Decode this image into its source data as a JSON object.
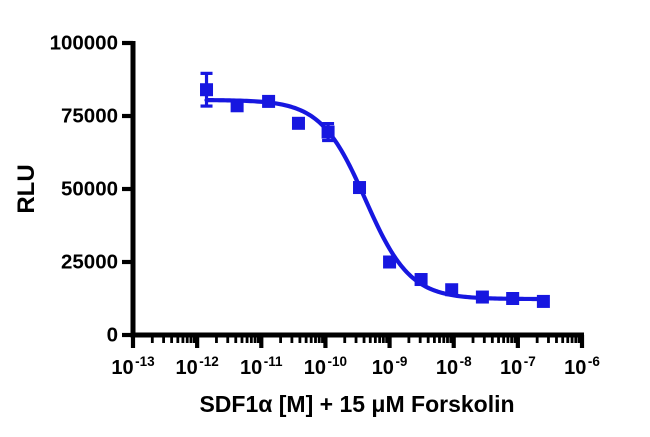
{
  "chart_data": {
    "type": "scatter",
    "title": "",
    "xlabel": "SDF1α [M] + 15 μM Forskolin",
    "ylabel": "RLU",
    "x_scale": "log10",
    "xlim_log10": [
      -13,
      -6
    ],
    "ylim": [
      0,
      100000
    ],
    "grid": false,
    "legend_position": "none",
    "y_ticks": [
      0,
      25000,
      50000,
      75000,
      100000
    ],
    "y_tick_labels": [
      "0",
      "25000",
      "50000",
      "75000",
      "100000"
    ],
    "x_tick_mantissa": "10",
    "x_major_ticks_log10": [
      -13,
      -12,
      -11,
      -10,
      -9,
      -8,
      -7,
      -6
    ],
    "x_tick_exponents": [
      "-13",
      "-12",
      "-11",
      "-10",
      "-9",
      "-8",
      "-7",
      "-6"
    ],
    "x_minor_tick_mantissas": [
      2,
      3,
      4,
      5,
      6,
      7,
      8,
      9
    ],
    "axis_color": "#000000",
    "series": [
      {
        "name": "SDF1a + 15 uM Forskolin",
        "color": "#1717e0",
        "marker": "square",
        "points": [
          {
            "x": 1.4e-12,
            "y": 84000,
            "y_err": 5600
          },
          {
            "x": 4.2e-12,
            "y": 78500
          },
          {
            "x": 1.3e-11,
            "y": 80000
          },
          {
            "x": 3.8e-11,
            "y": 72500
          },
          {
            "x": 1.1e-10,
            "y": 69500,
            "y_err": 2900
          },
          {
            "x": 3.4e-10,
            "y": 50500
          },
          {
            "x": 1e-09,
            "y": 25000
          },
          {
            "x": 3.1e-09,
            "y": 19000
          },
          {
            "x": 9.3e-09,
            "y": 15500
          },
          {
            "x": 2.8e-08,
            "y": 13000
          },
          {
            "x": 8.3e-08,
            "y": 12500
          },
          {
            "x": 2.5e-07,
            "y": 11500
          }
        ],
        "fit_curve": {
          "model": "four_parameter_logistic",
          "top": 80500,
          "bottom": 12300,
          "ic50": 4.2e-10,
          "hill_slope": -1.25,
          "x_range_log10": [
            -11.854,
            -6.602
          ]
        }
      }
    ]
  }
}
